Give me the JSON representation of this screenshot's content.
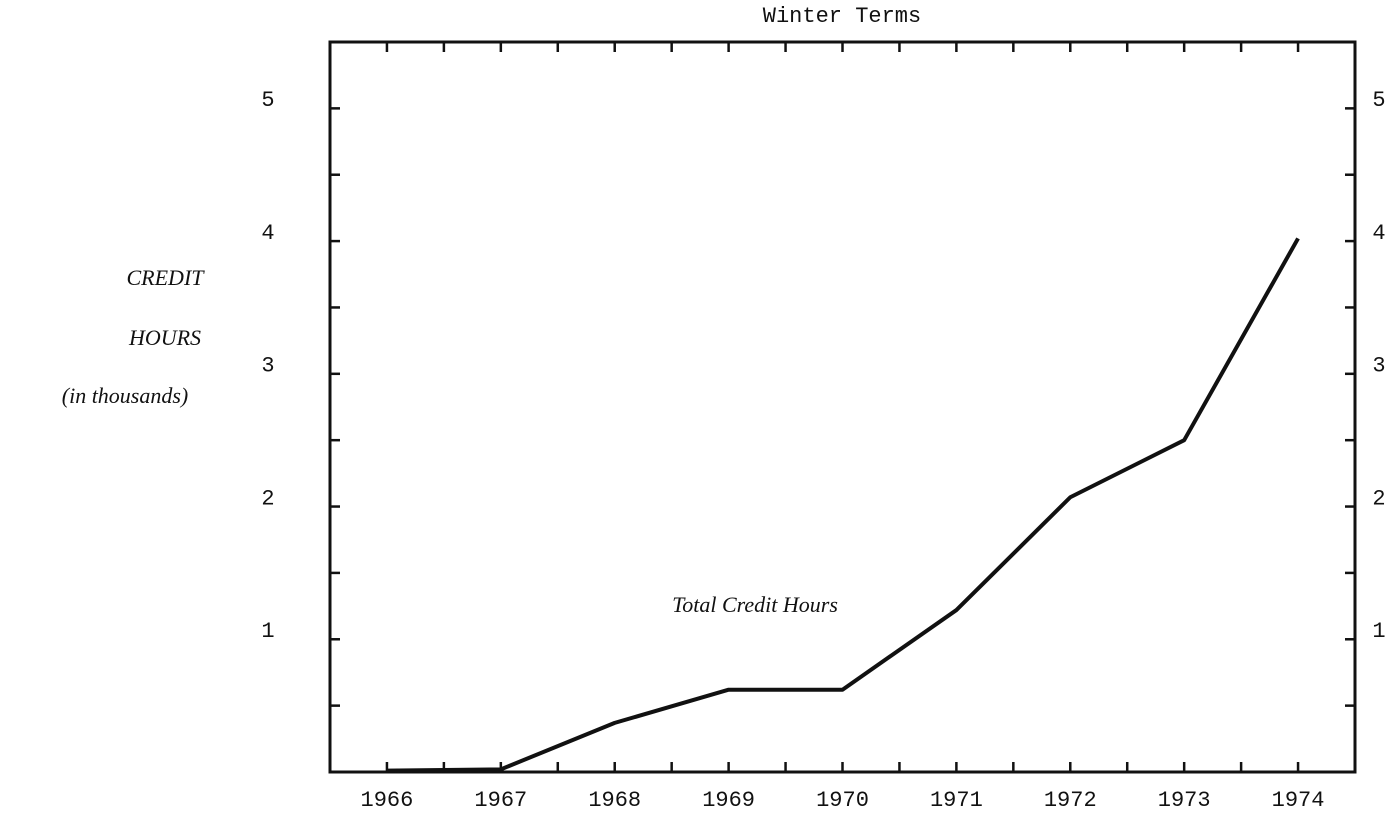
{
  "chart_data": {
    "type": "line",
    "title": "Winter Terms",
    "y_label_lines": [
      "CREDIT",
      "HOURS",
      "(in thousands)"
    ],
    "annotation": "Total Credit Hours",
    "categories": [
      "1966",
      "1967",
      "1968",
      "1969",
      "1970",
      "1971",
      "1972",
      "1973",
      "1974"
    ],
    "series": [
      {
        "name": "Total Credit Hours",
        "color": "#111111",
        "values": [
          0.01,
          0.02,
          0.37,
          0.62,
          0.62,
          1.22,
          2.07,
          2.5,
          4.02
        ]
      }
    ],
    "ylim": [
      0,
      5.5
    ],
    "yticks": [
      1,
      2,
      3,
      4,
      5
    ],
    "right_axis_labels": true,
    "grid": false
  }
}
